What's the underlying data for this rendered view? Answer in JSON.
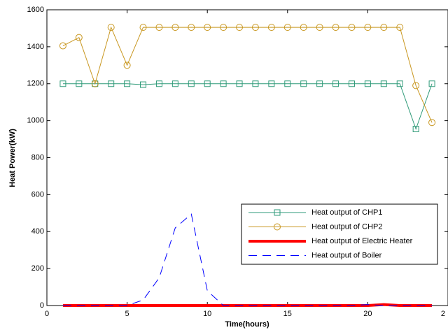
{
  "chart_data": {
    "type": "line",
    "xlabel": "Time(hours)",
    "ylabel": "Heat Power(kW)",
    "x": [
      1,
      2,
      3,
      4,
      5,
      6,
      7,
      8,
      9,
      10,
      11,
      12,
      13,
      14,
      15,
      16,
      17,
      18,
      19,
      20,
      21,
      22,
      23,
      24
    ],
    "series": [
      {
        "name": "Heat output of CHP1",
        "color": "#2e9a78",
        "marker": "square",
        "dash": false,
        "width": 1,
        "values": [
          1200,
          1200,
          1200,
          1200,
          1200,
          1195,
          1200,
          1200,
          1200,
          1200,
          1200,
          1200,
          1200,
          1200,
          1200,
          1200,
          1200,
          1200,
          1200,
          1200,
          1200,
          1200,
          955,
          1200
        ]
      },
      {
        "name": "Heat output of CHP2",
        "color": "#c8961e",
        "marker": "circle",
        "dash": false,
        "width": 1,
        "values": [
          1405,
          1450,
          1200,
          1505,
          1300,
          1505,
          1505,
          1505,
          1505,
          1505,
          1505,
          1505,
          1505,
          1505,
          1505,
          1505,
          1505,
          1505,
          1505,
          1505,
          1505,
          1505,
          1190,
          990
        ]
      },
      {
        "name": "Heat output of Electric Heater",
        "color": "#ff0000",
        "marker": "none",
        "dash": false,
        "width": 4,
        "values": [
          0,
          0,
          0,
          0,
          0,
          0,
          0,
          0,
          0,
          0,
          0,
          0,
          0,
          0,
          0,
          0,
          0,
          0,
          0,
          0,
          5,
          0,
          0,
          0
        ]
      },
      {
        "name": "Heat output of Boiler",
        "color": "#0000ff",
        "marker": "none",
        "dash": true,
        "width": 1,
        "values": [
          0,
          0,
          0,
          0,
          0,
          30,
          150,
          420,
          495,
          80,
          0,
          0,
          0,
          0,
          0,
          0,
          0,
          0,
          0,
          5,
          0,
          0,
          0,
          0
        ]
      }
    ],
    "xlim": [
      0,
      25
    ],
    "xticks": [
      0,
      5,
      10,
      15,
      20,
      {
        "value": 25,
        "label": "2"
      }
    ],
    "ylim": [
      0,
      1600
    ],
    "yticks": [
      0,
      200,
      400,
      600,
      800,
      1000,
      1200,
      1400,
      1600
    ],
    "grid": false,
    "legend": "lower right"
  }
}
